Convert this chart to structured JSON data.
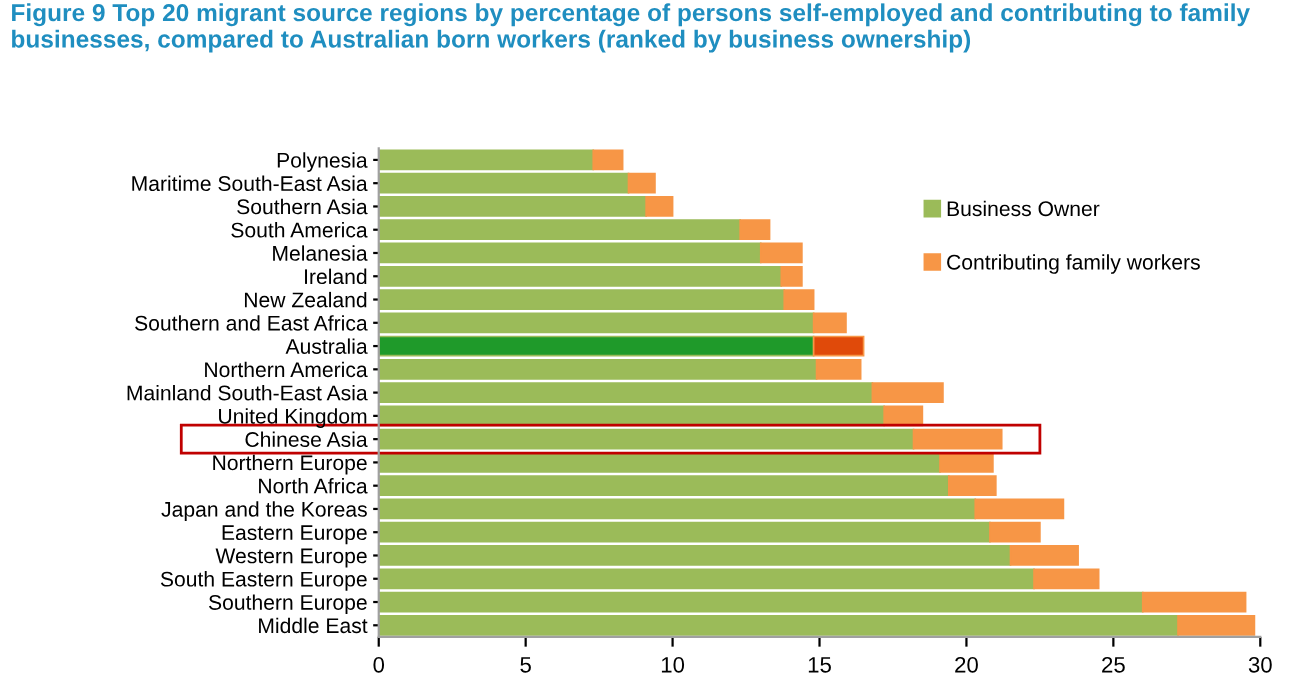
{
  "chart_data": {
    "type": "bar",
    "orientation": "horizontal",
    "stacked": true,
    "title": "Figure 9 Top 20 migrant source regions by percentage of persons self-employed and contributing to family businesses, compared to Australian born workers (ranked by business ownership)",
    "categories": [
      "Polynesia",
      "Maritime South-East Asia",
      "Southern Asia",
      "South America",
      "Melanesia",
      "Ireland",
      "New Zealand",
      "Southern and East Africa",
      "Australia",
      "Northern America",
      "Mainland South-East Asia",
      "United Kingdom",
      "Chinese Asia",
      "Northern Europe",
      "North Africa",
      "Japan and the Koreas",
      "Eastern Europe",
      "Western Europe",
      "South Eastern Europe",
      "Southern Europe",
      "Middle East"
    ],
    "series": [
      {
        "name": "Business Owner",
        "color": "#9bbb59",
        "colors": [
          "#9bbb59",
          "#9bbb59",
          "#9bbb59",
          "#9bbb59",
          "#9bbb59",
          "#9bbb59",
          "#9bbb59",
          "#9bbb59",
          "#1f9a2a",
          "#9bbb59",
          "#9bbb59",
          "#9bbb59",
          "#9bbb59",
          "#9bbb59",
          "#9bbb59",
          "#9bbb59",
          "#9bbb59",
          "#9bbb59",
          "#9bbb59",
          "#9bbb59",
          "#9bbb59"
        ],
        "values": [
          7.3,
          8.5,
          9.1,
          12.3,
          13.0,
          13.7,
          13.8,
          14.8,
          14.8,
          14.9,
          16.8,
          17.2,
          18.2,
          19.1,
          19.4,
          20.3,
          20.8,
          21.5,
          22.3,
          26.0,
          27.2
        ]
      },
      {
        "name": "Contributing family workers",
        "color": "#f79646",
        "colors": [
          "#f79646",
          "#f79646",
          "#f79646",
          "#f79646",
          "#f79646",
          "#f79646",
          "#f79646",
          "#f79646",
          "#e04a0a",
          "#f79646",
          "#f79646",
          "#f79646",
          "#f79646",
          "#f79646",
          "#f79646",
          "#f79646",
          "#f79646",
          "#f79646",
          "#f79646",
          "#f79646",
          "#f79646"
        ],
        "values": [
          1.0,
          0.9,
          0.9,
          1.0,
          1.4,
          0.7,
          1.0,
          1.1,
          1.7,
          1.5,
          2.4,
          1.3,
          3.0,
          1.8,
          1.6,
          3.0,
          1.7,
          2.3,
          2.2,
          3.5,
          2.6
        ]
      }
    ],
    "xlim": [
      0,
      30
    ],
    "xticks": [
      0,
      5,
      10,
      15,
      20,
      25,
      30
    ],
    "grid": false,
    "legend": "right"
  }
}
